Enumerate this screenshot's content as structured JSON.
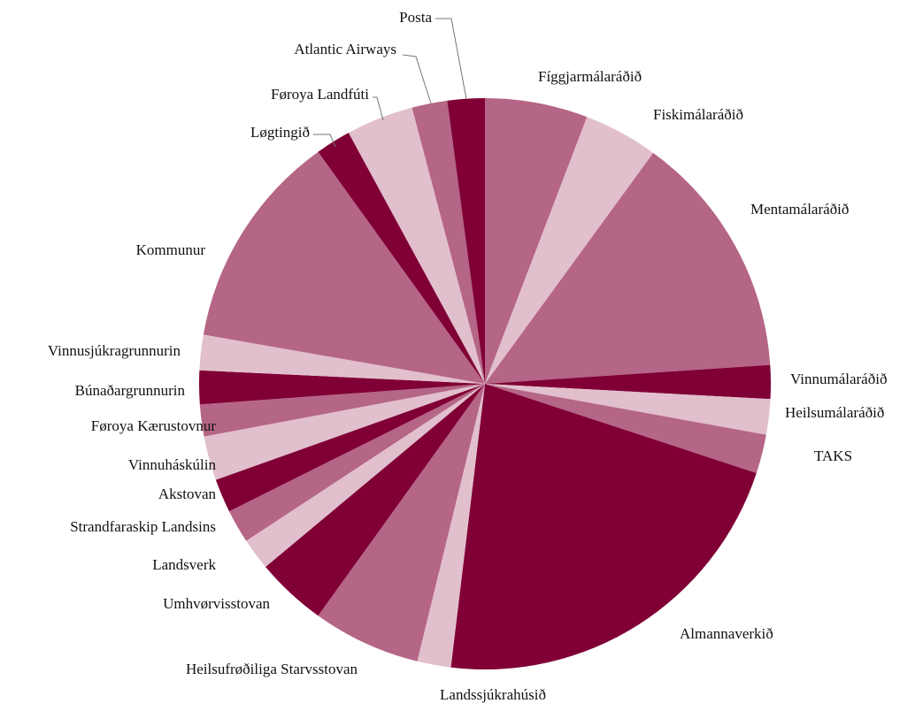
{
  "chart_data": {
    "type": "pie",
    "categories": [
      "Fíggjarmálaráðið",
      "Fiskimálaráðið",
      "Mentamálaráðið",
      "Vinnumálaráðið",
      "Heilsumálaráðið",
      "TAKS",
      "Almannaverkið",
      "Landssjúkrahúsið",
      "Heilsufrøðiliga Starvsstovan",
      "Umhvørvisstovan",
      "Landsverk",
      "Strandfaraskip Landsins",
      "Akstovan",
      "Vinnuháskúlin",
      "Føroya Kærustovnur",
      "Búnaðargrunnurin",
      "Vinnusjúkragrunnurin",
      "Kommunur",
      "Løgtingið",
      "Føroya Landfúti",
      "Atlantic Airways",
      "Posta"
    ],
    "values": [
      5.8,
      4.2,
      13.9,
      1.9,
      2,
      2.2,
      21.8,
      1.9,
      6.1,
      4,
      1.8,
      1.9,
      1.9,
      2.5,
      1.8,
      1.9,
      2,
      12.3,
      2,
      3.8,
      2,
      2.1
    ],
    "colors": [
      "#b56585",
      "#e2bfcd",
      "#b56585",
      "#800035",
      "#e2bfcd",
      "#b56585",
      "#800035",
      "#e2bfcd",
      "#b56585",
      "#800035",
      "#e2bfcd",
      "#b56585",
      "#800035",
      "#e2bfcd",
      "#b56585",
      "#800035",
      "#e2bfcd",
      "#b56585",
      "#800035",
      "#e2bfcd",
      "#b56585",
      "#800035"
    ]
  }
}
